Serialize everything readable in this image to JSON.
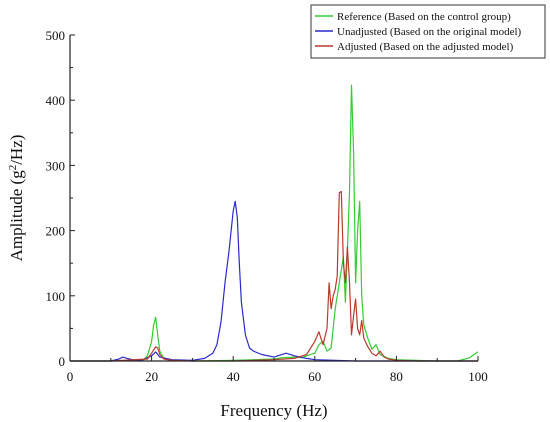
{
  "chart_data": {
    "type": "line",
    "xlabel": "Frequency (Hz)",
    "ylabel_prefix": "Amplitude (g",
    "ylabel_sup": "2",
    "ylabel_suffix": "/Hz)",
    "xlim": [
      0,
      100
    ],
    "ylim": [
      0,
      500
    ],
    "xticks": [
      0,
      20,
      40,
      60,
      80,
      100
    ],
    "yticks": [
      0,
      100,
      200,
      300,
      400,
      500
    ],
    "grid": false,
    "legend_position": "top-right",
    "series": [
      {
        "name": "Reference (Based on the control group)",
        "color": "#33cc33",
        "x": [
          0,
          10,
          18,
          19,
          20,
          20.5,
          21,
          21.5,
          22,
          23,
          25,
          30,
          40,
          45,
          50,
          52,
          55,
          57,
          58,
          60,
          61,
          62,
          63,
          64,
          65,
          66,
          67,
          67.5,
          68,
          68.5,
          69,
          69.5,
          70,
          70.5,
          71,
          71.5,
          72,
          73,
          74,
          75,
          76,
          78,
          80,
          85,
          90,
          95,
          98,
          99,
          100
        ],
        "y": [
          0,
          0,
          2,
          8,
          30,
          55,
          67,
          40,
          15,
          4,
          1,
          0,
          1,
          2,
          3,
          5,
          6,
          5,
          8,
          12,
          25,
          30,
          15,
          20,
          80,
          120,
          160,
          90,
          170,
          260,
          423,
          320,
          120,
          200,
          245,
          100,
          55,
          35,
          18,
          25,
          10,
          4,
          2,
          1,
          0,
          0,
          5,
          10,
          14
        ]
      },
      {
        "name": "Unadjusted (Based on the original model)",
        "color": "#2a2acc",
        "x": [
          0,
          10,
          12,
          13,
          14,
          16,
          18,
          20,
          21,
          22,
          25,
          30,
          33,
          35,
          36,
          37,
          38,
          39,
          40,
          40.5,
          41,
          41.5,
          42,
          43,
          44,
          45,
          47,
          50,
          53,
          55,
          58,
          60,
          65,
          70,
          80,
          90,
          100
        ],
        "y": [
          0,
          0,
          3,
          6,
          4,
          1,
          2,
          8,
          14,
          6,
          2,
          1,
          4,
          12,
          25,
          60,
          120,
          170,
          230,
          245,
          220,
          150,
          90,
          40,
          20,
          15,
          10,
          6,
          12,
          8,
          4,
          2,
          1,
          0,
          0,
          0,
          0
        ]
      },
      {
        "name": "Adjusted (Based on the adjusted model)",
        "color": "#b83a2e",
        "x": [
          0,
          10,
          19,
          20,
          21,
          21.5,
          22,
          23,
          25,
          30,
          40,
          50,
          55,
          58,
          60,
          61,
          62,
          63,
          63.5,
          64,
          64.5,
          65,
          65.5,
          66,
          66.5,
          67,
          67.5,
          68,
          68.5,
          69,
          69.5,
          70,
          70.5,
          71,
          71.5,
          72,
          73,
          74,
          75,
          76,
          77,
          78,
          80,
          85,
          90,
          100
        ],
        "y": [
          0,
          0,
          3,
          12,
          22,
          20,
          10,
          3,
          1,
          0,
          0,
          2,
          4,
          10,
          30,
          45,
          25,
          50,
          120,
          80,
          100,
          110,
          130,
          258,
          260,
          150,
          120,
          175,
          120,
          40,
          70,
          95,
          50,
          40,
          62,
          35,
          22,
          12,
          8,
          15,
          6,
          3,
          1,
          0,
          0,
          0
        ]
      }
    ]
  }
}
